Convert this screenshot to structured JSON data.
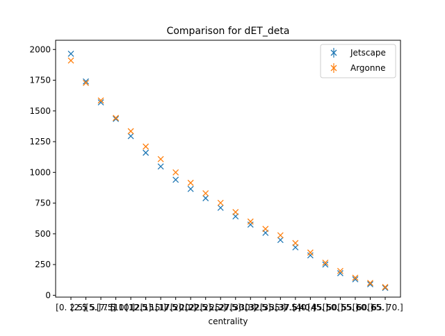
{
  "chart_data": {
    "type": "scatter",
    "title": "Comparison for dET_deta",
    "xlabel": "centrality",
    "ylabel": "",
    "categories": [
      "[0. 2.5]",
      "[2.5 5.]",
      "[5. 7.5]",
      "[ 7.5 10.]",
      "[10. 12.5]",
      "[12.5 15.]",
      "[15. 17.5]",
      "[17.5 20.]",
      "[20. 22.5]",
      "[22.5 25.]",
      "[25. 27.5]",
      "[27.5 30.]",
      "[30. 32.5]",
      "[32.5 35.]",
      "[35. 37.5]",
      "[37.5 40.]",
      "[40. 45.]",
      "[45. 50.]",
      "[50. 55.]",
      "[55. 60.]",
      "[60. 65.]",
      "[65. 70.]"
    ],
    "ylim": [
      -15,
      2075
    ],
    "yticks": [
      0,
      250,
      500,
      750,
      1000,
      1250,
      1500,
      1750,
      2000
    ],
    "ytick_labels": [
      "0",
      "250",
      "500",
      "750",
      "1000",
      "1250",
      "1500",
      "1750",
      "2000"
    ],
    "legend_position": "top-right",
    "grid": false,
    "series": [
      {
        "name": "Jetscape",
        "color": "#1f77b4",
        "marker": "x",
        "values": [
          1965,
          1740,
          1570,
          1435,
          1295,
          1160,
          1048,
          940,
          865,
          790,
          712,
          642,
          575,
          508,
          450,
          390,
          325,
          250,
          180,
          130,
          90,
          60
        ]
      },
      {
        "name": "Argonne",
        "color": "#ff7f0e",
        "marker": "x",
        "values": [
          1910,
          1728,
          1585,
          1443,
          1335,
          1210,
          1108,
          1000,
          915,
          830,
          752,
          677,
          600,
          540,
          488,
          425,
          348,
          265,
          198,
          143,
          100,
          67
        ]
      }
    ]
  }
}
